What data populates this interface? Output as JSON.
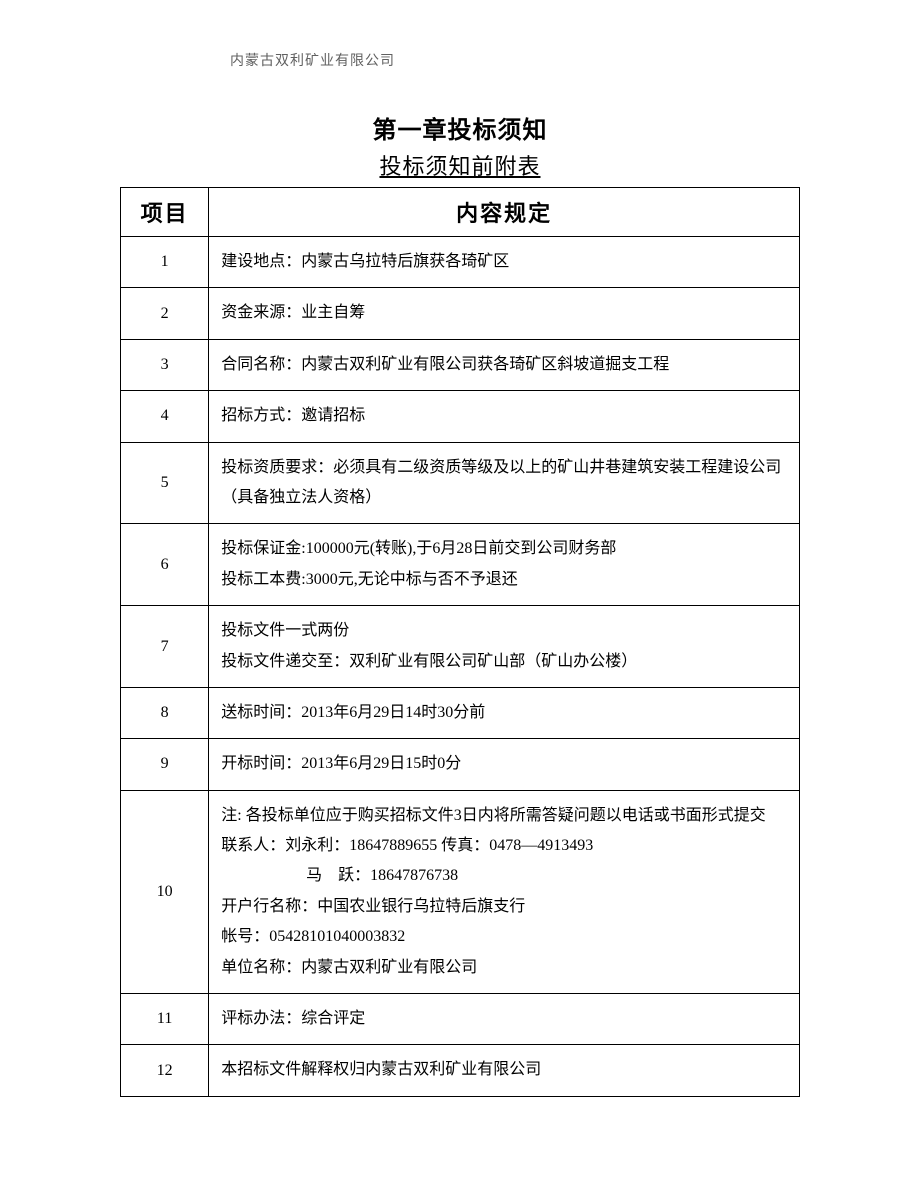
{
  "header": {
    "company": "内蒙古双利矿业有限公司"
  },
  "titles": {
    "chapter": "第一章投标须知",
    "subtitle": "投标须知前附表"
  },
  "table": {
    "columns": {
      "item": "项目",
      "content": "内容规定"
    },
    "rows": [
      {
        "idx": "1",
        "lines": [
          "建设地点：内蒙古乌拉特后旗获各琦矿区"
        ]
      },
      {
        "idx": "2",
        "lines": [
          "资金来源：业主自筹"
        ]
      },
      {
        "idx": "3",
        "lines": [
          "合同名称：内蒙古双利矿业有限公司获各琦矿区斜坡道掘支工程"
        ]
      },
      {
        "idx": "4",
        "lines": [
          "招标方式：邀请招标"
        ]
      },
      {
        "idx": "5",
        "lines": [
          "投标资质要求：必须具有二级资质等级及以上的矿山井巷建筑安装工程建设公司（具备独立法人资格）"
        ]
      },
      {
        "idx": "6",
        "lines": [
          "投标保证金:100000元(转账),于6月28日前交到公司财务部",
          "投标工本费:3000元,无论中标与否不予退还"
        ]
      },
      {
        "idx": "7",
        "lines": [
          "投标文件一式两份",
          "投标文件递交至：双利矿业有限公司矿山部（矿山办公楼）"
        ]
      },
      {
        "idx": "8",
        "lines": [
          "送标时间：2013年6月29日14时30分前"
        ]
      },
      {
        "idx": "9",
        "lines": [
          "开标时间：2013年6月29日15时0分"
        ]
      },
      {
        "idx": "10",
        "lines": [
          "注: 各投标单位应于购买招标文件3日内将所需答疑问题以电话或书面形式提交",
          "联系人：刘永利：18647889655 传真：0478—4913493",
          "马　跃：18647876738",
          "开户行名称：中国农业银行乌拉特后旗支行",
          "帐号：05428101040003832",
          "单位名称：内蒙古双利矿业有限公司"
        ],
        "indent": {
          "2": "indent2"
        }
      },
      {
        "idx": "11",
        "lines": [
          "评标办法：综合评定"
        ]
      },
      {
        "idx": "12",
        "lines": [
          "本招标文件解释权归内蒙古双利矿业有限公司"
        ]
      }
    ]
  }
}
